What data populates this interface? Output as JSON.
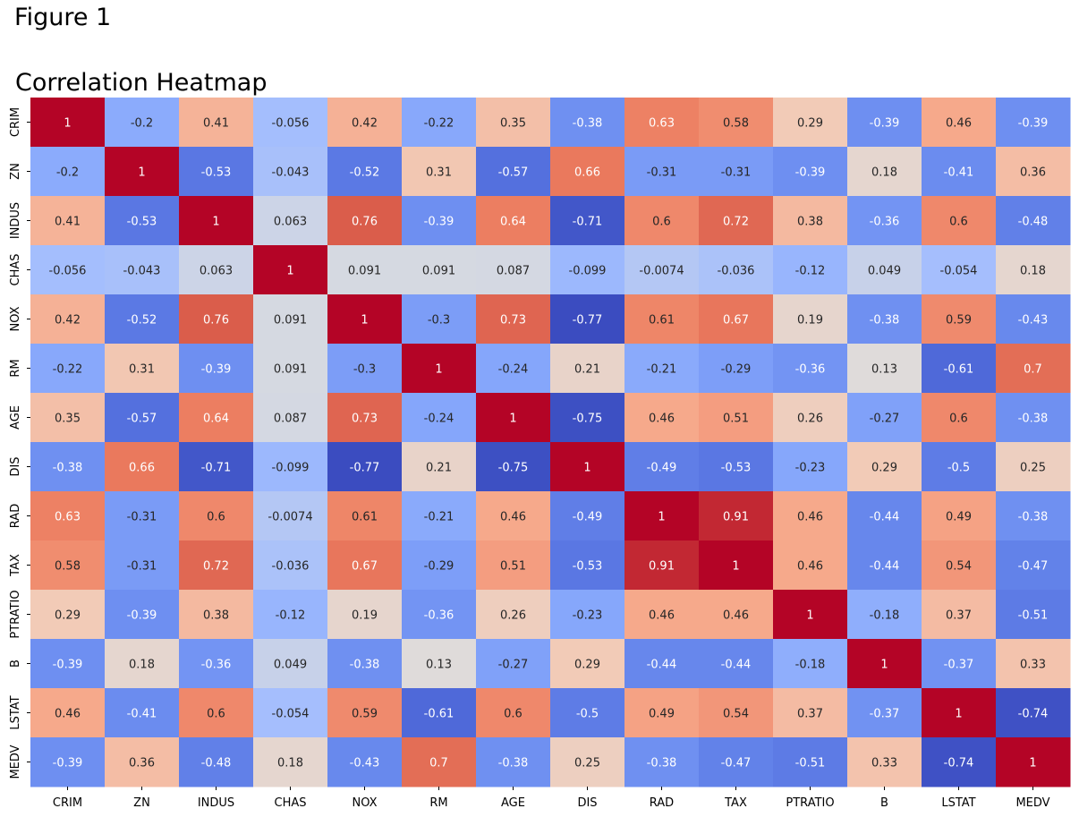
{
  "window": {
    "title": "Figure 1"
  },
  "chart_data": {
    "type": "heatmap",
    "title": "Correlation Heatmap",
    "colormap": "coolwarm",
    "vmin": -0.77,
    "vmax": 1,
    "colorbar": false,
    "annotations": true,
    "labels": [
      "CRIM",
      "ZN",
      "INDUS",
      "CHAS",
      "NOX",
      "RM",
      "AGE",
      "DIS",
      "RAD",
      "TAX",
      "PTRATIO",
      "B",
      "LSTAT",
      "MEDV"
    ],
    "values": [
      [
        "1",
        "-0.2",
        "0.41",
        "-0.056",
        "0.42",
        "-0.22",
        "0.35",
        "-0.38",
        "0.63",
        "0.58",
        "0.29",
        "-0.39",
        "0.46",
        "-0.39"
      ],
      [
        "-0.2",
        "1",
        "-0.53",
        "-0.043",
        "-0.52",
        "0.31",
        "-0.57",
        "0.66",
        "-0.31",
        "-0.31",
        "-0.39",
        "0.18",
        "-0.41",
        "0.36"
      ],
      [
        "0.41",
        "-0.53",
        "1",
        "0.063",
        "0.76",
        "-0.39",
        "0.64",
        "-0.71",
        "0.6",
        "0.72",
        "0.38",
        "-0.36",
        "0.6",
        "-0.48"
      ],
      [
        "-0.056",
        "-0.043",
        "0.063",
        "1",
        "0.091",
        "0.091",
        "0.087",
        "-0.099",
        "-0.0074",
        "-0.036",
        "-0.12",
        "0.049",
        "-0.054",
        "0.18"
      ],
      [
        "0.42",
        "-0.52",
        "0.76",
        "0.091",
        "1",
        "-0.3",
        "0.73",
        "-0.77",
        "0.61",
        "0.67",
        "0.19",
        "-0.38",
        "0.59",
        "-0.43"
      ],
      [
        "-0.22",
        "0.31",
        "-0.39",
        "0.091",
        "-0.3",
        "1",
        "-0.24",
        "0.21",
        "-0.21",
        "-0.29",
        "-0.36",
        "0.13",
        "-0.61",
        "0.7"
      ],
      [
        "0.35",
        "-0.57",
        "0.64",
        "0.087",
        "0.73",
        "-0.24",
        "1",
        "-0.75",
        "0.46",
        "0.51",
        "0.26",
        "-0.27",
        "0.6",
        "-0.38"
      ],
      [
        "-0.38",
        "0.66",
        "-0.71",
        "-0.099",
        "-0.77",
        "0.21",
        "-0.75",
        "1",
        "-0.49",
        "-0.53",
        "-0.23",
        "0.29",
        "-0.5",
        "0.25"
      ],
      [
        "0.63",
        "-0.31",
        "0.6",
        "-0.0074",
        "0.61",
        "-0.21",
        "0.46",
        "-0.49",
        "1",
        "0.91",
        "0.46",
        "-0.44",
        "0.49",
        "-0.38"
      ],
      [
        "0.58",
        "-0.31",
        "0.72",
        "-0.036",
        "0.67",
        "-0.29",
        "0.51",
        "-0.53",
        "0.91",
        "1",
        "0.46",
        "-0.44",
        "0.54",
        "-0.47"
      ],
      [
        "0.29",
        "-0.39",
        "0.38",
        "-0.12",
        "0.19",
        "-0.36",
        "0.26",
        "-0.23",
        "0.46",
        "0.46",
        "1",
        "-0.18",
        "0.37",
        "-0.51"
      ],
      [
        "-0.39",
        "0.18",
        "-0.36",
        "0.049",
        "-0.38",
        "0.13",
        "-0.27",
        "0.29",
        "-0.44",
        "-0.44",
        "-0.18",
        "1",
        "-0.37",
        "0.33"
      ],
      [
        "0.46",
        "-0.41",
        "0.6",
        "-0.054",
        "0.59",
        "-0.61",
        "0.6",
        "-0.5",
        "0.49",
        "0.54",
        "0.37",
        "-0.37",
        "1",
        "-0.74"
      ],
      [
        "-0.39",
        "0.36",
        "-0.48",
        "0.18",
        "-0.43",
        "0.7",
        "-0.38",
        "0.25",
        "-0.38",
        "-0.47",
        "-0.51",
        "0.33",
        "-0.74",
        "1"
      ]
    ]
  }
}
